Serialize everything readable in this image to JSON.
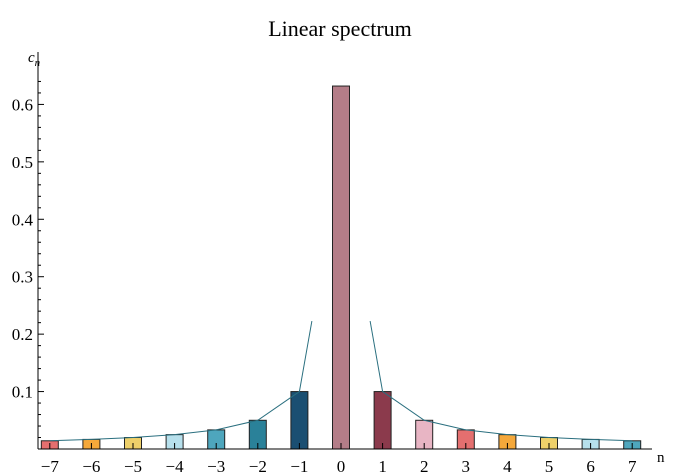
{
  "chart_data": {
    "type": "bar",
    "title": "Linear spectrum",
    "xlabel": "n",
    "ylabel": "c",
    "ylabel_subscript": "n",
    "categories": [
      "−7",
      "−6",
      "−5",
      "−4",
      "−3",
      "−2",
      "−1",
      "0",
      "1",
      "2",
      "3",
      "4",
      "5",
      "6",
      "7"
    ],
    "x": [
      -7,
      -6,
      -5,
      -4,
      -3,
      -2,
      -1,
      0,
      1,
      2,
      3,
      4,
      5,
      6,
      7
    ],
    "values": [
      0.0143,
      0.0167,
      0.02,
      0.025,
      0.0333,
      0.05,
      0.1,
      0.632,
      0.1,
      0.05,
      0.0333,
      0.025,
      0.02,
      0.0167,
      0.0143
    ],
    "colors": [
      "#e46f6f",
      "#f5a83a",
      "#eed06a",
      "#b7e0ec",
      "#4ea6bd",
      "#2a8199",
      "#1b4f72",
      "#b47d88",
      "#8b3a4c",
      "#e8b5c4",
      "#e46f6f",
      "#f5a83a",
      "#eed06a",
      "#b7e0ec",
      "#4ea6bd"
    ],
    "envelope": {
      "x_left": [
        -7,
        -6,
        -5,
        -4,
        -3,
        -2,
        -1,
        -0.7
      ],
      "y_left": [
        0.0143,
        0.0167,
        0.02,
        0.025,
        0.0333,
        0.05,
        0.1,
        0.2228
      ],
      "x_right": [
        0.7,
        1,
        2,
        3,
        4,
        5,
        6,
        7
      ],
      "y_right": [
        0.2228,
        0.1,
        0.05,
        0.0333,
        0.025,
        0.02,
        0.0167,
        0.0143
      ],
      "color": "#2a6f7f"
    },
    "y_ticks": [
      0.1,
      0.2,
      0.3,
      0.4,
      0.5,
      0.6
    ],
    "y_tick_labels": [
      "0.1",
      "0.2",
      "0.3",
      "0.4",
      "0.5",
      "0.6"
    ],
    "xlim": [
      -7.5,
      7.5
    ],
    "ylim": [
      0,
      0.66
    ],
    "grid": false,
    "legend": "none"
  }
}
